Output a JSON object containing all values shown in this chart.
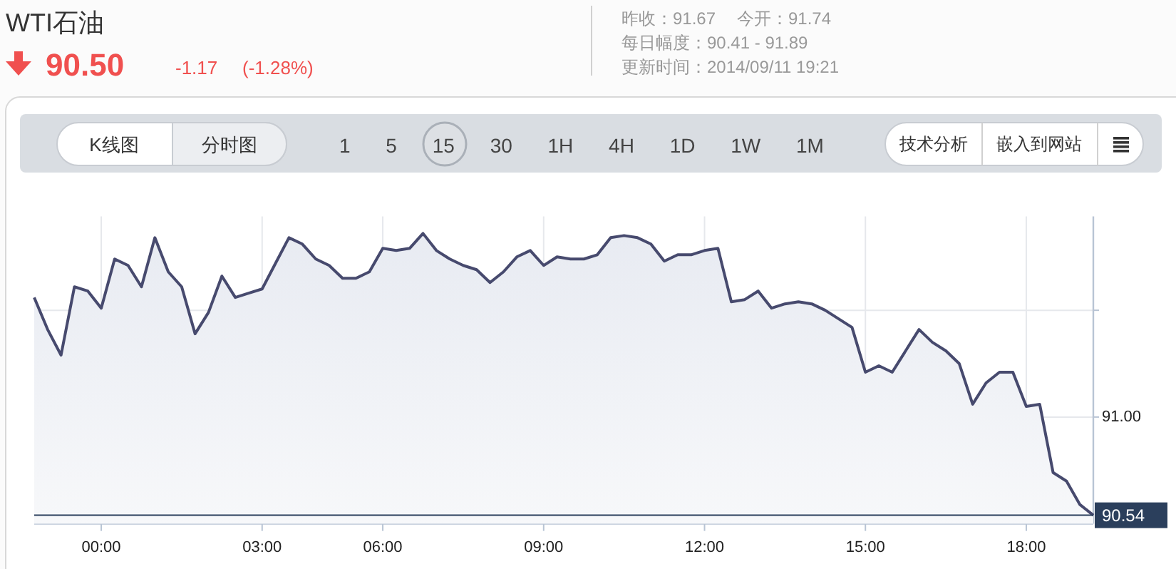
{
  "chart_data": {
    "type": "area",
    "title": "WTI石油",
    "annotations": [
      "90.50",
      "-1.17",
      "(-1.28%)",
      "昨收：91.67",
      "今开：91.74",
      "每日幅度：90.41 - 91.89",
      "更新时间：2014/09/11 19:21",
      "K线图",
      "分时图",
      "1 5 15 30 1H 4H 1D 1W 1M",
      "技术分析",
      "嵌入到网站"
    ],
    "categories": [
      null,
      null,
      null,
      null,
      null,
      "00:00",
      null,
      null,
      null,
      null,
      null,
      null,
      null,
      null,
      null,
      null,
      null,
      "03:00",
      null,
      null,
      null,
      null,
      null,
      null,
      null,
      null,
      "06:00",
      null,
      null,
      null,
      null,
      null,
      null,
      null,
      null,
      null,
      null,
      null,
      "09:00",
      null,
      null,
      null,
      null,
      null,
      null,
      null,
      null,
      null,
      null,
      null,
      "12:00",
      null,
      null,
      null,
      null,
      null,
      null,
      null,
      null,
      null,
      null,
      null,
      "15:00",
      null,
      null,
      null,
      null,
      null,
      null,
      null,
      null,
      null,
      null,
      null,
      "18:00",
      null,
      null,
      null,
      null,
      null
    ],
    "series": [
      {
        "color": "#474a6e",
        "values": [
          91.56,
          91.41,
          91.29,
          91.61,
          91.59,
          91.51,
          91.74,
          91.71,
          91.61,
          91.84,
          91.68,
          91.61,
          91.39,
          91.49,
          91.66,
          91.56,
          91.58,
          91.6,
          91.72,
          91.84,
          91.81,
          91.74,
          91.71,
          91.65,
          91.65,
          91.68,
          91.79,
          91.78,
          91.79,
          91.86,
          91.78,
          91.74,
          91.71,
          91.69,
          91.63,
          91.68,
          91.75,
          91.78,
          91.71,
          91.75,
          91.74,
          91.74,
          91.76,
          91.84,
          91.85,
          91.84,
          91.81,
          91.73,
          91.76,
          91.76,
          91.78,
          91.79,
          91.54,
          91.55,
          91.59,
          91.51,
          91.53,
          91.54,
          91.53,
          91.5,
          91.46,
          91.42,
          91.21,
          91.24,
          91.21,
          91.31,
          91.41,
          91.35,
          91.31,
          91.25,
          91.06,
          91.16,
          91.21,
          91.21,
          91.05,
          91.06,
          90.74,
          90.7,
          90.59,
          90.54
        ]
      }
    ],
    "ylim": [
      90.5,
      91.94
    ],
    "yticks": [
      {
        "value": 90.54,
        "label": "90.54"
      },
      {
        "value": 91.0,
        "label": "91.00"
      },
      {
        "value": 91.5,
        "label": null
      }
    ],
    "ref_lines": [
      {
        "axis": "y",
        "value": 90.54,
        "color": "#2b3f5c"
      }
    ],
    "grid": true
  }
}
